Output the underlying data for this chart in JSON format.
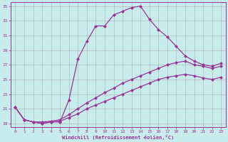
{
  "xlabel": "Windchill (Refroidissement éolien,°C)",
  "bg_color": "#c8ecec",
  "grid_color": "#b0b0b0",
  "line_color": "#993399",
  "xlim": [
    -0.5,
    23.5
  ],
  "ylim": [
    18.5,
    35.5
  ],
  "yticks": [
    19,
    21,
    23,
    25,
    27,
    29,
    31,
    33,
    35
  ],
  "xticks": [
    0,
    1,
    2,
    3,
    4,
    5,
    6,
    7,
    8,
    9,
    10,
    11,
    12,
    13,
    14,
    15,
    16,
    17,
    18,
    19,
    20,
    21,
    22,
    23
  ],
  "line1_x": [
    0,
    1,
    2,
    3,
    4,
    5,
    6,
    7,
    8,
    9,
    10,
    11,
    12,
    13,
    14,
    15,
    16,
    17,
    18,
    19,
    20,
    21,
    22,
    23
  ],
  "line1_y": [
    21.2,
    19.5,
    19.2,
    19.0,
    19.2,
    19.2,
    22.2,
    27.8,
    30.2,
    32.3,
    32.3,
    33.8,
    34.3,
    34.8,
    35.0,
    33.2,
    31.8,
    30.8,
    29.5,
    28.2,
    27.5,
    27.0,
    26.8,
    27.2
  ],
  "line2_x": [
    0,
    1,
    2,
    3,
    4,
    5,
    6,
    7,
    8,
    9,
    10,
    11,
    12,
    13,
    14,
    15,
    16,
    17,
    18,
    19,
    20,
    21,
    22,
    23
  ],
  "line2_y": [
    21.2,
    19.5,
    19.2,
    19.2,
    19.3,
    19.5,
    20.2,
    21.0,
    21.8,
    22.5,
    23.2,
    23.8,
    24.5,
    25.0,
    25.5,
    26.0,
    26.5,
    27.0,
    27.3,
    27.5,
    27.0,
    26.8,
    26.5,
    26.8
  ],
  "line3_x": [
    0,
    1,
    2,
    3,
    4,
    5,
    6,
    7,
    8,
    9,
    10,
    11,
    12,
    13,
    14,
    15,
    16,
    17,
    18,
    19,
    20,
    21,
    22,
    23
  ],
  "line3_y": [
    21.2,
    19.5,
    19.2,
    19.0,
    19.2,
    19.3,
    19.8,
    20.3,
    21.0,
    21.5,
    22.0,
    22.5,
    23.0,
    23.5,
    24.0,
    24.5,
    25.0,
    25.3,
    25.5,
    25.7,
    25.5,
    25.2,
    25.0,
    25.3
  ],
  "marker": "D",
  "markersize": 2.5,
  "linewidth": 0.9
}
